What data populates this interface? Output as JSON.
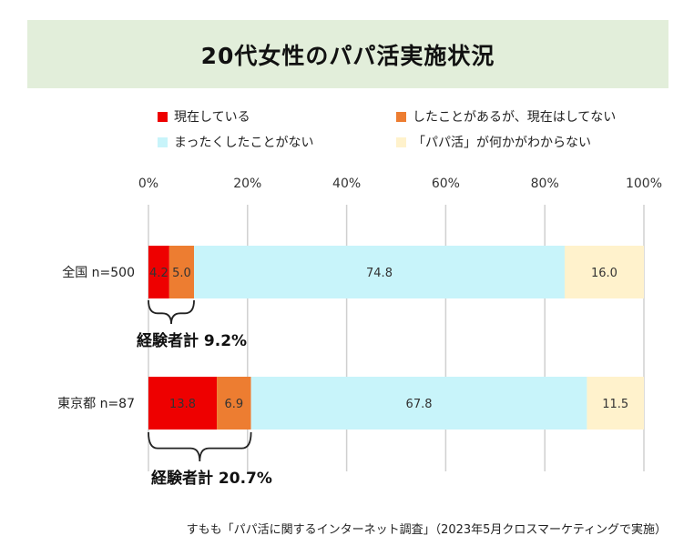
{
  "chart_data": {
    "type": "bar",
    "orientation": "horizontal",
    "stacked": true,
    "title": "20代女性のパパ活実施状況",
    "categories": [
      "全国 n=500",
      "東京都 n=87"
    ],
    "series": [
      {
        "name": "現在している",
        "color": "#ee0000",
        "values": [
          4.2,
          13.8
        ]
      },
      {
        "name": "したことがあるが、現在はしてない",
        "color": "#ed7d31",
        "values": [
          5.0,
          6.9
        ]
      },
      {
        "name": "まったくしたことがない",
        "color": "#c8f4fa",
        "values": [
          74.8,
          67.8
        ]
      },
      {
        "name": "「パパ活」が何かがわからない",
        "color": "#fff2cc",
        "values": [
          16.0,
          11.5
        ]
      }
    ],
    "data_labels": [
      [
        "4.2",
        "5.0",
        "74.8",
        "16.0"
      ],
      [
        "13.8",
        "6.9",
        "67.8",
        "11.5"
      ]
    ],
    "xlim": [
      0,
      100
    ],
    "xticks": [
      0,
      20,
      40,
      60,
      80,
      100
    ],
    "xtick_labels": [
      "0%",
      "20%",
      "40%",
      "60%",
      "80%",
      "100%"
    ],
    "grid": true,
    "legend_position": "top",
    "annotations": [
      {
        "text": "経験者計 9.2%",
        "category_index": 0,
        "span": [
          0,
          9.2
        ]
      },
      {
        "text": "経験者計 20.7%",
        "category_index": 1,
        "span": [
          0,
          20.7
        ]
      }
    ]
  },
  "footnote": "すもも「パパ活に関するインターネット調査」（2023年5月クロスマーケティングで実施）"
}
